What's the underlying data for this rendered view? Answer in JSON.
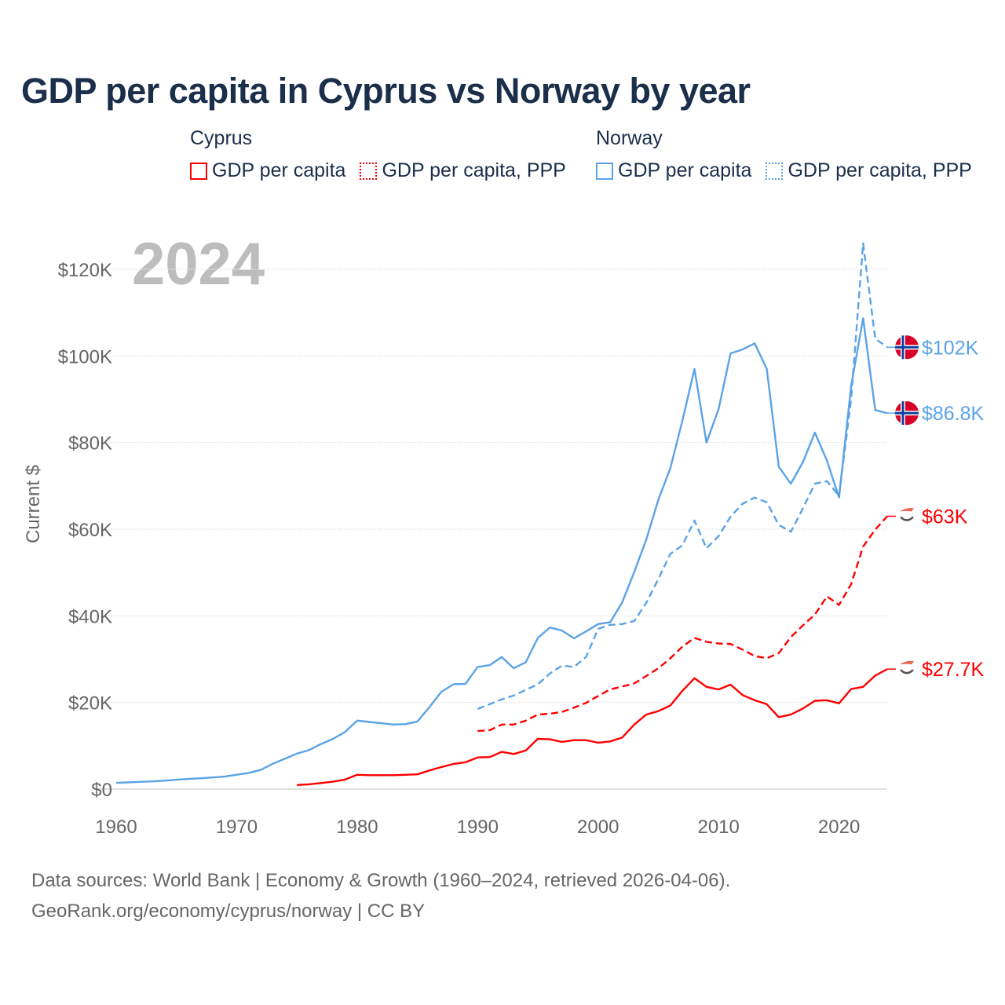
{
  "title": "GDP per capita in Cyprus vs Norway by year",
  "legend": {
    "groups": [
      {
        "name": "Cyprus",
        "items": [
          "GDP per capita",
          "GDP per capita, PPP"
        ],
        "color": "#ff0000"
      },
      {
        "name": "Norway",
        "items": [
          "GDP per capita",
          "GDP per capita, PPP"
        ],
        "color": "#5ba3e6"
      }
    ]
  },
  "footer": {
    "line1": "Data sources: World Bank | Economy & Growth (1960–2024, retrieved 2026-04-06).",
    "line2": "GeoRank.org/economy/cyprus/norway | CC BY"
  },
  "chart_data": {
    "type": "line",
    "title": "GDP per capita in Cyprus vs Norway by year",
    "year_label": "2024",
    "ylabel": "Current $",
    "xlabel": "",
    "xlim": [
      1960,
      2024
    ],
    "ylim": [
      0,
      120000
    ],
    "x_ticks": [
      1960,
      1970,
      1980,
      1990,
      2000,
      2010,
      2020
    ],
    "y_ticks": [
      0,
      20000,
      40000,
      60000,
      80000,
      100000,
      120000
    ],
    "y_tick_labels": [
      "$0",
      "$20K",
      "$40K",
      "$60K",
      "$80K",
      "$100K",
      "$120K"
    ],
    "grid": true,
    "legend_position": "top",
    "series": [
      {
        "name": "Norway GDP per capita",
        "color": "#5ba3e6",
        "dash": false,
        "start": 1960,
        "end_label": "$86.8K",
        "flag": "norway",
        "values": [
          1.44,
          1.56,
          1.67,
          1.78,
          1.94,
          2.16,
          2.33,
          2.51,
          2.68,
          2.89,
          3.31,
          3.74,
          4.42,
          5.85,
          7.0,
          8.2,
          9.0,
          10.4,
          11.6,
          13.2,
          15.8,
          15.5,
          15.2,
          14.9,
          15.0,
          15.6,
          18.9,
          22.5,
          24.2,
          24.3,
          28.2,
          28.6,
          30.5,
          27.9,
          29.3,
          34.9,
          37.3,
          36.6,
          34.8,
          36.4,
          38.1,
          38.5,
          43.1,
          50.1,
          57.6,
          66.8,
          74.1,
          85.1,
          97.0,
          80.0,
          87.7,
          100.6,
          101.5,
          102.9,
          97.0,
          74.4,
          70.5,
          75.5,
          82.3,
          75.8,
          67.3,
          93.0,
          108.7,
          87.5,
          86.8
        ]
      },
      {
        "name": "Norway GDP per capita, PPP",
        "color": "#5ba3e6",
        "dash": true,
        "start": 1990,
        "end_label": "$102K",
        "flag": "norway",
        "values": [
          18.5,
          19.6,
          20.7,
          21.6,
          22.9,
          24.2,
          26.7,
          28.5,
          28.2,
          30.5,
          37.0,
          37.9,
          38.1,
          38.8,
          43.0,
          48.5,
          54.3,
          56.3,
          62.0,
          55.6,
          58.4,
          62.9,
          65.9,
          67.3,
          66.2,
          61.0,
          59.4,
          64.8,
          70.5,
          71.1,
          67.7,
          90.0,
          126.0,
          104.0,
          102.0
        ]
      },
      {
        "name": "Cyprus GDP per capita, PPP",
        "color": "#ff0000",
        "dash": true,
        "start": 1990,
        "end_label": "$63K",
        "flag": "cyprus",
        "values": [
          13.4,
          13.6,
          14.9,
          14.9,
          15.8,
          17.2,
          17.4,
          17.8,
          18.8,
          19.9,
          21.5,
          23.0,
          23.7,
          24.4,
          26.1,
          27.9,
          30.2,
          32.9,
          34.9,
          34.0,
          33.6,
          33.5,
          32.2,
          30.7,
          30.2,
          31.4,
          35.1,
          37.8,
          40.3,
          44.5,
          42.5,
          47.3,
          56.0,
          59.9,
          63.0
        ]
      },
      {
        "name": "Cyprus GDP per capita",
        "color": "#ff0000",
        "dash": false,
        "start": 1975,
        "end_label": "$27.7K",
        "flag": "cyprus",
        "values": [
          0.95,
          1.1,
          1.4,
          1.7,
          2.2,
          3.3,
          3.2,
          3.2,
          3.2,
          3.3,
          3.4,
          4.3,
          5.1,
          5.8,
          6.2,
          7.3,
          7.4,
          8.6,
          8.1,
          8.9,
          11.6,
          11.5,
          10.9,
          11.3,
          11.3,
          10.7,
          11.0,
          11.9,
          14.9,
          17.2,
          18.0,
          19.3,
          22.7,
          25.6,
          23.6,
          23.0,
          24.1,
          21.7,
          20.5,
          19.6,
          16.6,
          17.2,
          18.6,
          20.4,
          20.5,
          19.8,
          23.1,
          23.6,
          26.2,
          27.7
        ]
      }
    ],
    "value_unit": "thousand USD"
  }
}
